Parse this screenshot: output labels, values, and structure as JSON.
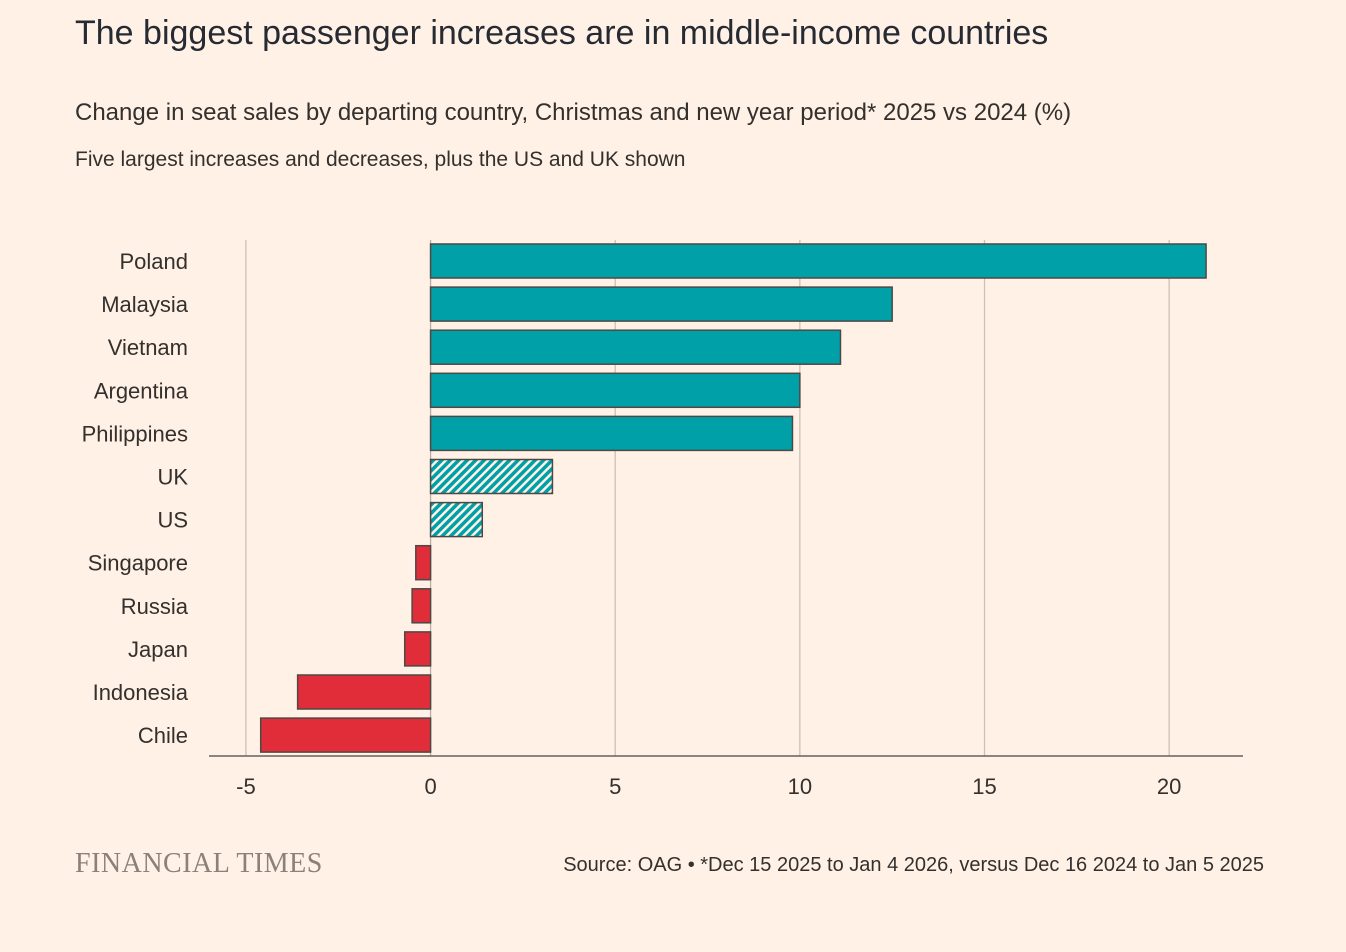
{
  "header": {
    "title": "The biggest passenger increases are in middle-income countries",
    "subtitle": "Change in seat sales by departing country, Christmas and new year period* 2025 vs 2024 (%)",
    "note": "Five largest increases and decreases, plus the US and UK shown"
  },
  "footer": {
    "brand": "FINANCIAL TIMES",
    "source": "Source: OAG • *Dec 15 2025 to Jan 4 2026, versus Dec 16 2024 to Jan 5 2025"
  },
  "colors": {
    "background": "#fff1e5",
    "increase": "#00a0a8",
    "decrease": "#e12d39",
    "grid": "#ccc1b7",
    "axis": "#66605c",
    "bar_outline": "#4d4845"
  },
  "chart_data": {
    "type": "bar",
    "orientation": "horizontal",
    "title": "Change in seat sales by departing country, Christmas and new year period* 2025 vs 2024 (%)",
    "xlabel": "",
    "ylabel": "",
    "xlim": [
      -6,
      22
    ],
    "x_ticks": [
      -5,
      0,
      5,
      10,
      15,
      20
    ],
    "x_tick_labels": [
      "-5",
      "0",
      "5",
      "10",
      "15",
      "20"
    ],
    "grid": true,
    "categories": [
      "Poland",
      "Malaysia",
      "Vietnam",
      "Argentina",
      "Philippines",
      "UK",
      "US",
      "Singapore",
      "Russia",
      "Japan",
      "Indonesia",
      "Chile"
    ],
    "values": [
      21.0,
      12.5,
      11.1,
      10.0,
      9.8,
      3.3,
      1.4,
      -0.4,
      -0.5,
      -0.7,
      -3.6,
      -4.6
    ],
    "highlighted": [
      "UK",
      "US"
    ]
  }
}
